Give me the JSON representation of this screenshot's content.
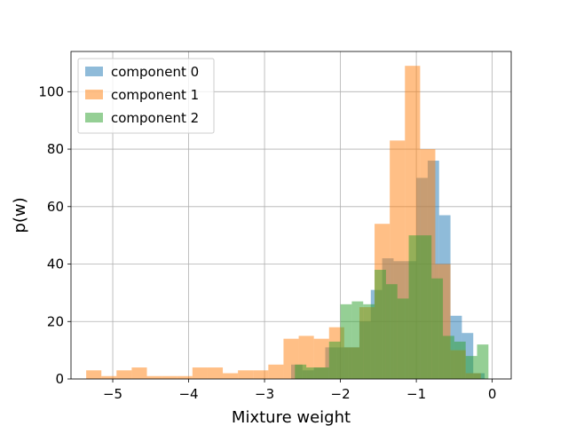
{
  "chart_data": {
    "type": "histogram",
    "xlabel": "Mixture weight",
    "ylabel": "p(w)",
    "xlim": [
      -5.55,
      0.25
    ],
    "ylim": [
      0,
      114
    ],
    "x_ticks": [
      -5,
      -4,
      -3,
      -2,
      -1,
      0
    ],
    "x_tick_labels": [
      "−5",
      "−4",
      "−3",
      "−2",
      "−1",
      "0"
    ],
    "y_ticks": [
      0,
      20,
      40,
      60,
      80,
      100
    ],
    "y_tick_labels": [
      "0",
      "20",
      "40",
      "60",
      "80",
      "100"
    ],
    "grid": true,
    "legend_position": "top-left",
    "series": [
      {
        "name": "component 0",
        "color": "#1f77b4",
        "opacity": 0.5,
        "bins": [
          [
            -2.65,
            -2.5,
            5
          ],
          [
            -2.5,
            -2.35,
            3
          ],
          [
            -2.35,
            -2.2,
            4
          ],
          [
            -2.2,
            -2.05,
            11
          ],
          [
            -2.05,
            -1.9,
            11
          ],
          [
            -1.9,
            -1.75,
            11
          ],
          [
            -1.75,
            -1.6,
            20
          ],
          [
            -1.6,
            -1.45,
            31
          ],
          [
            -1.45,
            -1.3,
            42
          ],
          [
            -1.3,
            -1.15,
            41
          ],
          [
            -1.15,
            -1.0,
            41
          ],
          [
            -1.0,
            -0.85,
            70
          ],
          [
            -0.85,
            -0.7,
            76
          ],
          [
            -0.7,
            -0.55,
            57
          ],
          [
            -0.55,
            -0.4,
            22
          ],
          [
            -0.4,
            -0.25,
            16
          ],
          [
            -0.25,
            -0.1,
            2
          ]
        ]
      },
      {
        "name": "component 1",
        "color": "#ff7f0e",
        "opacity": 0.5,
        "bins": [
          [
            -5.35,
            -5.15,
            3
          ],
          [
            -5.15,
            -4.95,
            1
          ],
          [
            -4.95,
            -4.75,
            3
          ],
          [
            -4.75,
            -4.55,
            4
          ],
          [
            -4.55,
            -4.35,
            1
          ],
          [
            -4.35,
            -4.15,
            1
          ],
          [
            -4.15,
            -3.95,
            1
          ],
          [
            -3.95,
            -3.75,
            4
          ],
          [
            -3.75,
            -3.55,
            4
          ],
          [
            -3.55,
            -3.35,
            2
          ],
          [
            -3.35,
            -3.15,
            3
          ],
          [
            -3.15,
            -2.95,
            3
          ],
          [
            -2.95,
            -2.75,
            5
          ],
          [
            -2.75,
            -2.55,
            14
          ],
          [
            -2.55,
            -2.35,
            15
          ],
          [
            -2.35,
            -2.15,
            14
          ],
          [
            -2.15,
            -1.95,
            18
          ],
          [
            -1.95,
            -1.75,
            11
          ],
          [
            -1.75,
            -1.55,
            25
          ],
          [
            -1.55,
            -1.35,
            54
          ],
          [
            -1.35,
            -1.15,
            83
          ],
          [
            -1.15,
            -0.95,
            109
          ],
          [
            -0.95,
            -0.75,
            80
          ],
          [
            -0.75,
            -0.55,
            40
          ],
          [
            -0.55,
            -0.35,
            10
          ],
          [
            -0.35,
            -0.15,
            2
          ]
        ]
      },
      {
        "name": "component 2",
        "color": "#2ca02c",
        "opacity": 0.5,
        "bins": [
          [
            -2.6,
            -2.45,
            5
          ],
          [
            -2.45,
            -2.3,
            4
          ],
          [
            -2.3,
            -2.15,
            4
          ],
          [
            -2.15,
            -2.0,
            13
          ],
          [
            -2.0,
            -1.85,
            26
          ],
          [
            -1.85,
            -1.7,
            27
          ],
          [
            -1.7,
            -1.55,
            26
          ],
          [
            -1.55,
            -1.4,
            38
          ],
          [
            -1.4,
            -1.25,
            33
          ],
          [
            -1.25,
            -1.1,
            28
          ],
          [
            -1.1,
            -0.95,
            50
          ],
          [
            -0.95,
            -0.8,
            50
          ],
          [
            -0.8,
            -0.65,
            35
          ],
          [
            -0.65,
            -0.5,
            15
          ],
          [
            -0.5,
            -0.35,
            13
          ],
          [
            -0.35,
            -0.2,
            8
          ],
          [
            -0.2,
            -0.05,
            12
          ]
        ]
      }
    ]
  }
}
